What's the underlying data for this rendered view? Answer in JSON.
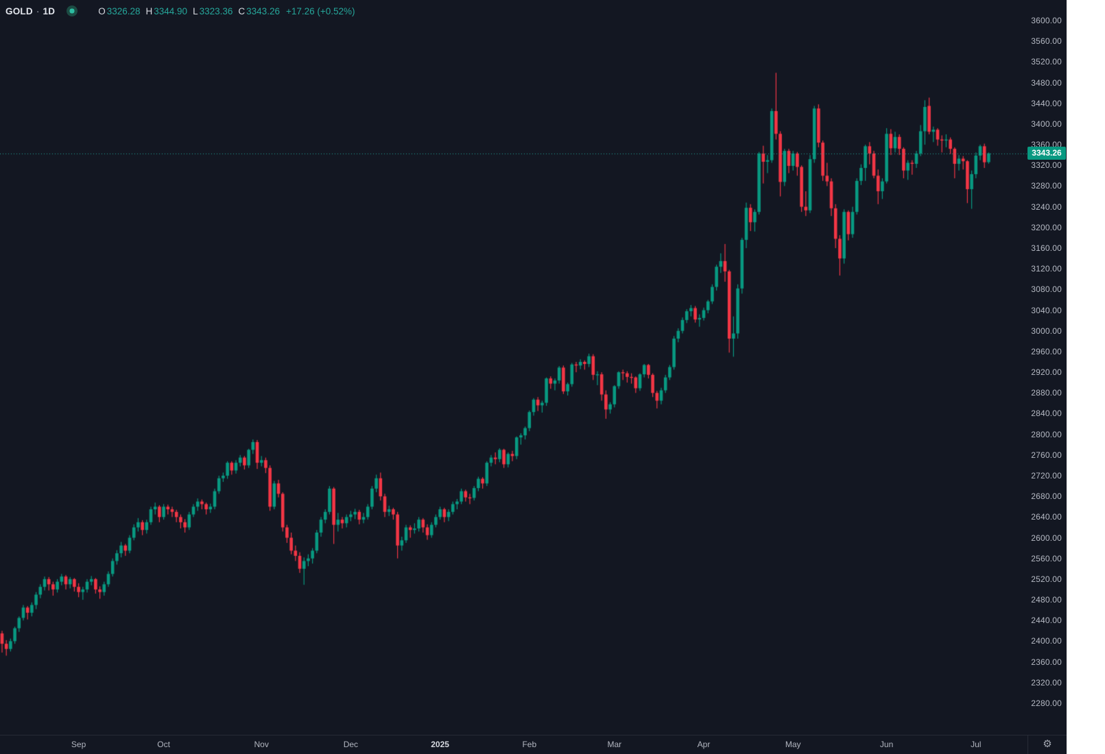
{
  "header": {
    "symbol": "GOLD",
    "separator": "·",
    "interval": "1D",
    "ohlc": [
      {
        "label": "O",
        "value": "3326.28"
      },
      {
        "label": "H",
        "value": "3344.90"
      },
      {
        "label": "L",
        "value": "3323.36"
      },
      {
        "label": "C",
        "value": "3343.26"
      }
    ],
    "change": "+17.26 (+0.52%)"
  },
  "colors": {
    "background": "#131722",
    "up": "#089981",
    "down": "#f23645",
    "axis_text": "#b6bac4",
    "separator_line": "#272b36",
    "price_line": "#26a69a",
    "badge_bg": "#089981",
    "badge_text": "#ffffff",
    "legend_value": "#26a69a",
    "scroll_strip": "#ffffff"
  },
  "price_line": {
    "value": 3343.26,
    "label": "3343.26"
  },
  "price_axis_ticks": [
    "3600.00",
    "3560.00",
    "3520.00",
    "3480.00",
    "3440.00",
    "3400.00",
    "3360.00",
    "3320.00",
    "3280.00",
    "3240.00",
    "3200.00",
    "3160.00",
    "3120.00",
    "3080.00",
    "3040.00",
    "3000.00",
    "2960.00",
    "2920.00",
    "2880.00",
    "2840.00",
    "2800.00",
    "2760.00",
    "2720.00",
    "2680.00",
    "2640.00",
    "2600.00",
    "2560.00",
    "2520.00",
    "2480.00",
    "2440.00",
    "2400.00",
    "2360.00",
    "2320.00",
    "2280.00"
  ],
  "time_axis": {
    "settings_icon": "⚙",
    "months": [
      {
        "text": "Sep",
        "bar": 18
      },
      {
        "text": "Oct",
        "bar": 38
      },
      {
        "text": "Nov",
        "bar": 61
      },
      {
        "text": "Dec",
        "bar": 82
      },
      {
        "text": "2025",
        "bar": 103,
        "year": true
      },
      {
        "text": "Feb",
        "bar": 124
      },
      {
        "text": "Mar",
        "bar": 144
      },
      {
        "text": "Apr",
        "bar": 165
      },
      {
        "text": "May",
        "bar": 186
      },
      {
        "text": "Jun",
        "bar": 208
      },
      {
        "text": "Jul",
        "bar": 229
      }
    ]
  },
  "chart_data": {
    "type": "candlestick",
    "title": "GOLD daily candlestick chart",
    "symbol": "GOLD",
    "interval": "1D",
    "legend_position": "top-left",
    "grid": false,
    "y_axis": {
      "min": 2280,
      "max": 3600,
      "tick_step": 40,
      "side": "right"
    },
    "x_axis": {
      "unit": "trading-day",
      "month_first_bar": [
        [
          "Sep",
          18
        ],
        [
          "Oct",
          38
        ],
        [
          "Nov",
          61
        ],
        [
          "Dec",
          82
        ],
        [
          "2025",
          103
        ],
        [
          "Feb",
          124
        ],
        [
          "Mar",
          144
        ],
        [
          "Apr",
          165
        ],
        [
          "May",
          186
        ],
        [
          "Jun",
          208
        ],
        [
          "Jul",
          229
        ]
      ]
    },
    "last_price": 3343.26,
    "candles_ohlc": [
      [
        2415,
        2420,
        2378,
        2395
      ],
      [
        2395,
        2402,
        2372,
        2385
      ],
      [
        2385,
        2405,
        2380,
        2400
      ],
      [
        2400,
        2428,
        2395,
        2425
      ],
      [
        2425,
        2448,
        2418,
        2445
      ],
      [
        2445,
        2470,
        2440,
        2465
      ],
      [
        2465,
        2468,
        2442,
        2455
      ],
      [
        2455,
        2475,
        2448,
        2470
      ],
      [
        2470,
        2495,
        2462,
        2490
      ],
      [
        2490,
        2510,
        2483,
        2505
      ],
      [
        2505,
        2525,
        2498,
        2520
      ],
      [
        2520,
        2524,
        2498,
        2510
      ],
      [
        2510,
        2515,
        2488,
        2500
      ],
      [
        2500,
        2520,
        2494,
        2515
      ],
      [
        2515,
        2530,
        2508,
        2525
      ],
      [
        2525,
        2528,
        2500,
        2510
      ],
      [
        2510,
        2524,
        2502,
        2520
      ],
      [
        2520,
        2522,
        2496,
        2505
      ],
      [
        2505,
        2512,
        2485,
        2495
      ],
      [
        2495,
        2505,
        2480,
        2500
      ],
      [
        2500,
        2520,
        2494,
        2515
      ],
      [
        2515,
        2526,
        2508,
        2520
      ],
      [
        2520,
        2522,
        2492,
        2500
      ],
      [
        2500,
        2506,
        2482,
        2495
      ],
      [
        2495,
        2515,
        2488,
        2510
      ],
      [
        2510,
        2535,
        2505,
        2530
      ],
      [
        2530,
        2560,
        2525,
        2555
      ],
      [
        2555,
        2576,
        2548,
        2570
      ],
      [
        2570,
        2592,
        2562,
        2585
      ],
      [
        2585,
        2588,
        2565,
        2575
      ],
      [
        2575,
        2605,
        2570,
        2600
      ],
      [
        2600,
        2626,
        2595,
        2620
      ],
      [
        2620,
        2638,
        2612,
        2630
      ],
      [
        2630,
        2634,
        2605,
        2615
      ],
      [
        2615,
        2635,
        2608,
        2630
      ],
      [
        2630,
        2660,
        2625,
        2655
      ],
      [
        2655,
        2668,
        2645,
        2660
      ],
      [
        2660,
        2663,
        2630,
        2640
      ],
      [
        2640,
        2665,
        2635,
        2660
      ],
      [
        2660,
        2664,
        2645,
        2655
      ],
      [
        2655,
        2660,
        2640,
        2650
      ],
      [
        2650,
        2654,
        2630,
        2640
      ],
      [
        2640,
        2645,
        2618,
        2630
      ],
      [
        2630,
        2636,
        2610,
        2620
      ],
      [
        2620,
        2650,
        2615,
        2645
      ],
      [
        2645,
        2665,
        2640,
        2660
      ],
      [
        2660,
        2676,
        2652,
        2670
      ],
      [
        2670,
        2674,
        2655,
        2665
      ],
      [
        2665,
        2668,
        2645,
        2655
      ],
      [
        2655,
        2666,
        2648,
        2660
      ],
      [
        2660,
        2695,
        2655,
        2690
      ],
      [
        2690,
        2720,
        2685,
        2715
      ],
      [
        2715,
        2726,
        2708,
        2720
      ],
      [
        2720,
        2748,
        2714,
        2745
      ],
      [
        2745,
        2748,
        2722,
        2730
      ],
      [
        2730,
        2750,
        2724,
        2745
      ],
      [
        2745,
        2760,
        2738,
        2755
      ],
      [
        2755,
        2758,
        2732,
        2740
      ],
      [
        2740,
        2772,
        2735,
        2770
      ],
      [
        2770,
        2790,
        2762,
        2785
      ],
      [
        2785,
        2789,
        2733,
        2745
      ],
      [
        2745,
        2758,
        2738,
        2750
      ],
      [
        2750,
        2755,
        2725,
        2735
      ],
      [
        2735,
        2740,
        2652,
        2660
      ],
      [
        2660,
        2710,
        2655,
        2705
      ],
      [
        2705,
        2712,
        2678,
        2685
      ],
      [
        2685,
        2688,
        2612,
        2620
      ],
      [
        2620,
        2625,
        2590,
        2600
      ],
      [
        2600,
        2610,
        2568,
        2575
      ],
      [
        2575,
        2585,
        2555,
        2565
      ],
      [
        2565,
        2572,
        2532,
        2540
      ],
      [
        2540,
        2562,
        2509,
        2555
      ],
      [
        2555,
        2568,
        2545,
        2560
      ],
      [
        2560,
        2580,
        2550,
        2575
      ],
      [
        2575,
        2615,
        2570,
        2610
      ],
      [
        2610,
        2640,
        2602,
        2635
      ],
      [
        2635,
        2655,
        2628,
        2650
      ],
      [
        2650,
        2700,
        2645,
        2695
      ],
      [
        2695,
        2698,
        2588,
        2625
      ],
      [
        2625,
        2648,
        2612,
        2635
      ],
      [
        2635,
        2640,
        2618,
        2628
      ],
      [
        2628,
        2645,
        2620,
        2640
      ],
      [
        2640,
        2652,
        2632,
        2645
      ],
      [
        2645,
        2656,
        2636,
        2650
      ],
      [
        2650,
        2654,
        2626,
        2635
      ],
      [
        2635,
        2648,
        2628,
        2640
      ],
      [
        2640,
        2665,
        2635,
        2660
      ],
      [
        2660,
        2700,
        2655,
        2695
      ],
      [
        2695,
        2722,
        2688,
        2715
      ],
      [
        2715,
        2726,
        2672,
        2680
      ],
      [
        2680,
        2685,
        2640,
        2650
      ],
      [
        2650,
        2662,
        2642,
        2655
      ],
      [
        2655,
        2658,
        2635,
        2645
      ],
      [
        2645,
        2650,
        2560,
        2585
      ],
      [
        2585,
        2602,
        2575,
        2595
      ],
      [
        2595,
        2625,
        2590,
        2620
      ],
      [
        2620,
        2624,
        2600,
        2615
      ],
      [
        2615,
        2628,
        2608,
        2618
      ],
      [
        2618,
        2640,
        2612,
        2635
      ],
      [
        2635,
        2638,
        2610,
        2620
      ],
      [
        2620,
        2626,
        2596,
        2605
      ],
      [
        2605,
        2630,
        2600,
        2625
      ],
      [
        2625,
        2645,
        2620,
        2640
      ],
      [
        2640,
        2660,
        2635,
        2655
      ],
      [
        2655,
        2658,
        2630,
        2640
      ],
      [
        2640,
        2655,
        2632,
        2650
      ],
      [
        2650,
        2670,
        2645,
        2665
      ],
      [
        2665,
        2675,
        2655,
        2670
      ],
      [
        2670,
        2695,
        2665,
        2690
      ],
      [
        2690,
        2693,
        2670,
        2678
      ],
      [
        2678,
        2685,
        2665,
        2677
      ],
      [
        2677,
        2700,
        2672,
        2696
      ],
      [
        2696,
        2718,
        2690,
        2714
      ],
      [
        2714,
        2717,
        2695,
        2705
      ],
      [
        2705,
        2748,
        2700,
        2745
      ],
      [
        2745,
        2760,
        2738,
        2755
      ],
      [
        2755,
        2765,
        2742,
        2752
      ],
      [
        2752,
        2773,
        2746,
        2770
      ],
      [
        2770,
        2772,
        2735,
        2742
      ],
      [
        2742,
        2765,
        2736,
        2762
      ],
      [
        2762,
        2768,
        2748,
        2758
      ],
      [
        2758,
        2796,
        2752,
        2794
      ],
      [
        2794,
        2802,
        2780,
        2798
      ],
      [
        2798,
        2815,
        2790,
        2812
      ],
      [
        2812,
        2846,
        2806,
        2843
      ],
      [
        2843,
        2870,
        2836,
        2867
      ],
      [
        2867,
        2872,
        2845,
        2856
      ],
      [
        2856,
        2865,
        2842,
        2861
      ],
      [
        2861,
        2910,
        2855,
        2908
      ],
      [
        2908,
        2912,
        2888,
        2898
      ],
      [
        2898,
        2908,
        2885,
        2904
      ],
      [
        2904,
        2932,
        2898,
        2929
      ],
      [
        2929,
        2933,
        2878,
        2883
      ],
      [
        2883,
        2900,
        2875,
        2897
      ],
      [
        2897,
        2938,
        2892,
        2935
      ],
      [
        2935,
        2940,
        2920,
        2933
      ],
      [
        2933,
        2945,
        2926,
        2940
      ],
      [
        2940,
        2943,
        2925,
        2936
      ],
      [
        2936,
        2956,
        2930,
        2951
      ],
      [
        2951,
        2955,
        2905,
        2915
      ],
      [
        2915,
        2922,
        2895,
        2916
      ],
      [
        2916,
        2920,
        2865,
        2877
      ],
      [
        2877,
        2885,
        2830,
        2848
      ],
      [
        2848,
        2862,
        2840,
        2858
      ],
      [
        2858,
        2895,
        2852,
        2893
      ],
      [
        2893,
        2922,
        2888,
        2920
      ],
      [
        2920,
        2925,
        2905,
        2918
      ],
      [
        2918,
        2922,
        2900,
        2911
      ],
      [
        2911,
        2918,
        2898,
        2910
      ],
      [
        2910,
        2912,
        2880,
        2889
      ],
      [
        2889,
        2918,
        2884,
        2916
      ],
      [
        2916,
        2936,
        2910,
        2934
      ],
      [
        2934,
        2936,
        2908,
        2915
      ],
      [
        2915,
        2918,
        2872,
        2880
      ],
      [
        2880,
        2884,
        2850,
        2865
      ],
      [
        2865,
        2890,
        2858,
        2885
      ],
      [
        2885,
        2915,
        2880,
        2910
      ],
      [
        2910,
        2934,
        2905,
        2930
      ],
      [
        2930,
        2990,
        2925,
        2985
      ],
      [
        2985,
        3005,
        2978,
        3000
      ],
      [
        3000,
        3026,
        2995,
        3021
      ],
      [
        3021,
        3042,
        3015,
        3038
      ],
      [
        3038,
        3050,
        3028,
        3044
      ],
      [
        3044,
        3048,
        3016,
        3022
      ],
      [
        3022,
        3032,
        3008,
        3025
      ],
      [
        3025,
        3045,
        3020,
        3040
      ],
      [
        3040,
        3060,
        3034,
        3057
      ],
      [
        3057,
        3090,
        3052,
        3085
      ],
      [
        3085,
        3128,
        3078,
        3124
      ],
      [
        3124,
        3150,
        3112,
        3135
      ],
      [
        3135,
        3168,
        3095,
        3115
      ],
      [
        3115,
        3118,
        2958,
        2985
      ],
      [
        2985,
        3028,
        2950,
        2995
      ],
      [
        2995,
        3090,
        2985,
        3082
      ],
      [
        3082,
        3180,
        3072,
        3176
      ],
      [
        3176,
        3248,
        3160,
        3238
      ],
      [
        3238,
        3245,
        3193,
        3210
      ],
      [
        3210,
        3235,
        3192,
        3230
      ],
      [
        3230,
        3346,
        3225,
        3343
      ],
      [
        3343,
        3358,
        3285,
        3327
      ],
      [
        3327,
        3340,
        3305,
        3330
      ],
      [
        3330,
        3430,
        3325,
        3425
      ],
      [
        3425,
        3499,
        3370,
        3381
      ],
      [
        3381,
        3386,
        3260,
        3288
      ],
      [
        3288,
        3352,
        3280,
        3348
      ],
      [
        3348,
        3352,
        3305,
        3319
      ],
      [
        3319,
        3348,
        3310,
        3343
      ],
      [
        3343,
        3346,
        3300,
        3317
      ],
      [
        3317,
        3320,
        3230,
        3240
      ],
      [
        3240,
        3270,
        3222,
        3233
      ],
      [
        3233,
        3340,
        3228,
        3332
      ],
      [
        3332,
        3435,
        3325,
        3430
      ],
      [
        3430,
        3438,
        3355,
        3364
      ],
      [
        3364,
        3368,
        3290,
        3300
      ],
      [
        3300,
        3325,
        3280,
        3289
      ],
      [
        3289,
        3295,
        3222,
        3237
      ],
      [
        3237,
        3245,
        3160,
        3178
      ],
      [
        3178,
        3185,
        3107,
        3140
      ],
      [
        3140,
        3235,
        3130,
        3230
      ],
      [
        3230,
        3233,
        3175,
        3187
      ],
      [
        3187,
        3240,
        3180,
        3230
      ],
      [
        3230,
        3295,
        3225,
        3290
      ],
      [
        3290,
        3322,
        3282,
        3315
      ],
      [
        3315,
        3360,
        3290,
        3357
      ],
      [
        3357,
        3365,
        3322,
        3343
      ],
      [
        3343,
        3348,
        3295,
        3300
      ],
      [
        3300,
        3312,
        3245,
        3270
      ],
      [
        3270,
        3295,
        3255,
        3289
      ],
      [
        3289,
        3392,
        3285,
        3381
      ],
      [
        3381,
        3390,
        3340,
        3353
      ],
      [
        3353,
        3385,
        3345,
        3375
      ],
      [
        3375,
        3380,
        3340,
        3352
      ],
      [
        3352,
        3355,
        3295,
        3310
      ],
      [
        3310,
        3330,
        3292,
        3325
      ],
      [
        3325,
        3330,
        3302,
        3323
      ],
      [
        3323,
        3348,
        3315,
        3343
      ],
      [
        3343,
        3398,
        3338,
        3386
      ],
      [
        3386,
        3446,
        3360,
        3433
      ],
      [
        3435,
        3451,
        3380,
        3385
      ],
      [
        3385,
        3395,
        3365,
        3389
      ],
      [
        3389,
        3392,
        3358,
        3370
      ],
      [
        3370,
        3378,
        3345,
        3368
      ],
      [
        3368,
        3380,
        3355,
        3370
      ],
      [
        3370,
        3374,
        3342,
        3352
      ],
      [
        3352,
        3355,
        3295,
        3323
      ],
      [
        3323,
        3340,
        3310,
        3333
      ],
      [
        3333,
        3338,
        3312,
        3328
      ],
      [
        3328,
        3330,
        3247,
        3274
      ],
      [
        3274,
        3310,
        3236,
        3303
      ],
      [
        3303,
        3345,
        3295,
        3339
      ],
      [
        3339,
        3360,
        3330,
        3357
      ],
      [
        3357,
        3362,
        3315,
        3326
      ],
      [
        3326.28,
        3344.9,
        3323.36,
        3343.26
      ]
    ]
  }
}
